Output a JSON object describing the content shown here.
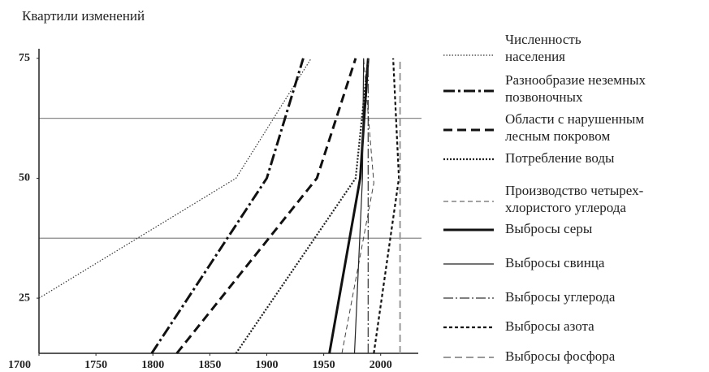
{
  "chart_data": {
    "type": "line",
    "title": "Квартили изменений",
    "xlim": [
      1700,
      2033
    ],
    "ylim": [
      13.5,
      77
    ],
    "xticks": [
      1700,
      1750,
      1800,
      1850,
      1900,
      1950,
      2000
    ],
    "yticks": [
      25,
      50,
      75
    ],
    "reference_lines": [
      62.5,
      37.5
    ],
    "series": [
      {
        "name": "Численность\nнаселения",
        "color": "#333",
        "width": 1.2,
        "dash": "1.5 2",
        "x": [
          1700,
          1873,
          1939
        ],
        "values": [
          25,
          50,
          75
        ]
      },
      {
        "name": "Разнообразие неземных\nпозвоночных",
        "color": "#111",
        "width": 3,
        "dash": "14 4 3 4",
        "x": [
          1799,
          1900,
          1932
        ],
        "values": [
          13.5,
          50,
          75
        ]
      },
      {
        "name": "Области с нарушенным\nлесным покровом",
        "color": "#111",
        "width": 3,
        "dash": "11 6",
        "x": [
          1821,
          1944,
          1978
        ],
        "values": [
          13.5,
          50,
          75
        ]
      },
      {
        "name": "Потребление воды",
        "color": "#222",
        "width": 2.2,
        "dash": "2 2",
        "x": [
          1873,
          1978,
          1989
        ],
        "values": [
          13.5,
          50,
          75
        ]
      },
      {
        "name": "Производство четырех-\nхлористого углерода",
        "color": "#444",
        "width": 1,
        "dash": "6 4",
        "x": [
          1966,
          1994,
          1985
        ],
        "values": [
          13.5,
          49,
          75
        ]
      },
      {
        "name": "Выбросы серы",
        "color": "#111",
        "width": 3,
        "dash": "",
        "x": [
          1955,
          1982,
          1989
        ],
        "values": [
          13.5,
          50,
          75
        ]
      },
      {
        "name": "Выбросы свинца",
        "color": "#222",
        "width": 1.2,
        "dash": "",
        "x": [
          1977,
          1984,
          1985
        ],
        "values": [
          13.5,
          50,
          75
        ]
      },
      {
        "name": "Выбросы углерода",
        "color": "#333",
        "width": 1.2,
        "dash": "12 3 2 3",
        "x": [
          1989,
          1989
        ],
        "values": [
          13.5,
          75
        ]
      },
      {
        "name": "Выбросы азота",
        "color": "#111",
        "width": 2.2,
        "dash": "4 3",
        "x": [
          1994,
          2016,
          2011
        ],
        "values": [
          13.5,
          50,
          75
        ]
      },
      {
        "name": "Выбросы фосфора",
        "color": "#999",
        "width": 2,
        "dash": "9 5",
        "x": [
          2017,
          2017
        ],
        "values": [
          13.5,
          75
        ]
      }
    ]
  }
}
